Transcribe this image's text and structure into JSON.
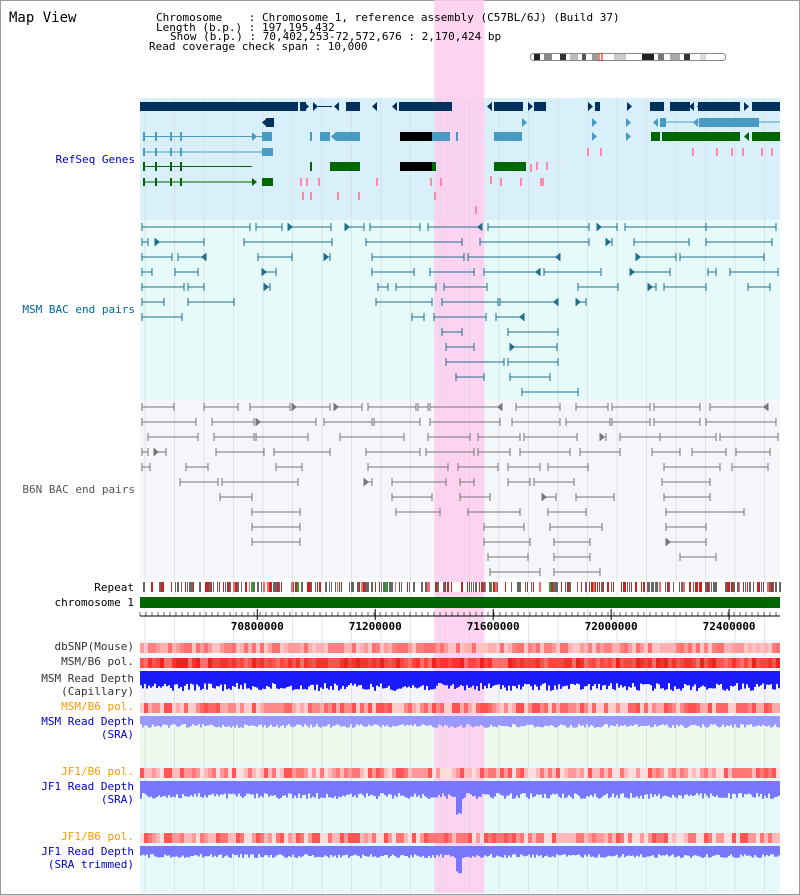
{
  "title": "Map View",
  "info": {
    "chromosome_line": "Chromosome    : Chromosome 1, reference assembly (C57BL/6J) (Build 37)",
    "length_line": "Length (b.p.) : 197,195,432",
    "show_line": "Show (b.p.) : 70,402,253-72,572,676 : 2,170,424 bp",
    "coverage_line": "Read coverage check span : 10,000"
  },
  "tracks": {
    "refseq": {
      "label": "RefSeq Genes",
      "color": "#0000cc"
    },
    "msm_bac": {
      "label": "MSM BAC end pairs",
      "color": "#006699"
    },
    "b6n_bac": {
      "label": "B6N BAC end pairs",
      "color": "#555555"
    },
    "repeat": {
      "label": "Repeat"
    },
    "chrom": {
      "label": "chromosome 1"
    },
    "dbsnp": {
      "label": "dbSNP(Mouse)",
      "color": "#333333"
    },
    "msm_b6_pol": {
      "label": "MSM/B6 pol.",
      "color": "#333333"
    },
    "msm_depth_cap": {
      "label_line1": "MSM Read Depth",
      "label_line2": "(Capillary)",
      "color": "#333333"
    },
    "msm_b6_pol2": {
      "label": "MSM/B6 pol.",
      "color": "#ff9900"
    },
    "msm_depth_sra": {
      "label_line1": "MSM Read Depth",
      "label_line2": "(SRA)",
      "color": "#0000cc"
    },
    "jf1_b6_pol": {
      "label": "JF1/B6 pol.",
      "color": "#ff9900"
    },
    "jf1_depth_sra": {
      "label_line1": "JF1 Read Depth",
      "label_line2": "(SRA)",
      "color": "#0000cc"
    },
    "jf1_b6_pol2": {
      "label": "JF1/B6 pol.",
      "color": "#ff9900"
    },
    "jf1_depth_trim": {
      "label_line1": "JF1 Read Depth",
      "label_line2": "(SRA trimmed)",
      "color": "#0000cc"
    }
  },
  "axis": {
    "ticks": [
      "70800000",
      "71200000",
      "71600000",
      "72000000",
      "72400000"
    ],
    "tick_values": [
      70800000,
      71200000,
      71600000,
      72000000,
      72400000
    ],
    "range_start": 70402253,
    "range_end": 72572676
  },
  "highlight_region": {
    "start": 71400000,
    "end": 71570000,
    "color": "#ffccee"
  },
  "colors": {
    "refseq_bg": "#d9f0fa",
    "msm_bg": "#e6fafa",
    "b6n_bg": "#f4f6fa",
    "gene_dark": "#00305e",
    "gene_mid": "#4a9bc4",
    "gene_green": "#006600",
    "msm_pair": "#1f6e8c",
    "b6n_pair": "#777777",
    "chromosome_bar": "#006600",
    "depth_blue": "#1a1aff",
    "depth_light": "#7777ff"
  }
}
